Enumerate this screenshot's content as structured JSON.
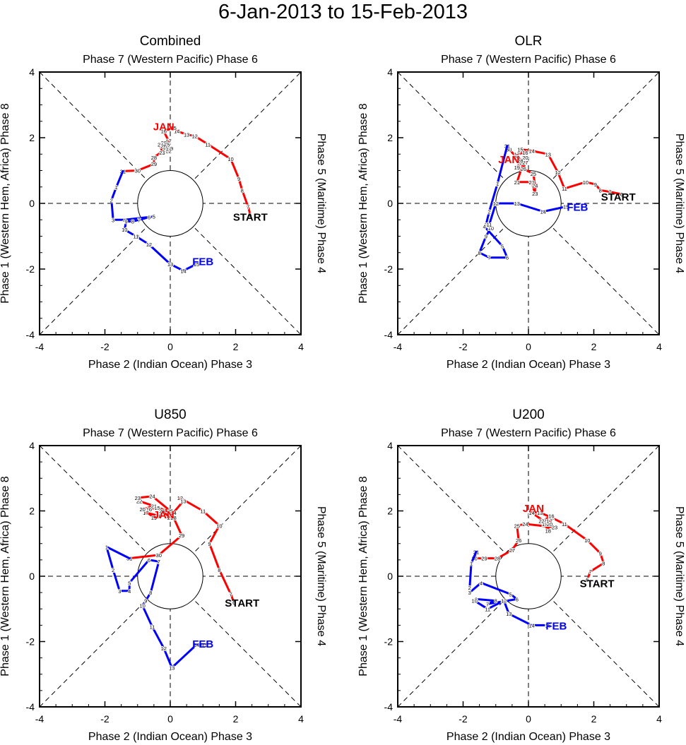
{
  "title": "6-Jan-2013 to 15-Feb-2013",
  "colors": {
    "jan": "#ff0000",
    "feb": "#0000ff",
    "start": "#000000"
  },
  "axes": {
    "top": "Phase 7 (Western Pacific) Phase 6",
    "bottom": "Phase 2 (Indian Ocean) Phase 3",
    "left": "Phase 1 (Western Hem, Africa) Phase 8",
    "right": "Phase 5 (Maritime) Phase 4",
    "ticks": [
      "-4",
      "-2",
      "0",
      "2",
      "4"
    ]
  },
  "labels": {
    "jan": "JAN",
    "feb": "FEB",
    "start": "START"
  },
  "chart_data": [
    {
      "type": "line",
      "title": "Combined",
      "xlim": [
        -4,
        4
      ],
      "ylim": [
        -4,
        4
      ],
      "jan": [
        [
          2.45,
          -0.35,
          "6"
        ],
        [
          2.38,
          -0.1,
          "7"
        ],
        [
          2.2,
          0.4,
          "8"
        ],
        [
          2.1,
          0.75,
          "9"
        ],
        [
          1.85,
          1.35,
          "10"
        ],
        [
          1.15,
          1.8,
          "11"
        ],
        [
          0.75,
          2.05,
          "12"
        ],
        [
          0.5,
          2.1,
          "13"
        ],
        [
          0.2,
          2.2,
          "14"
        ],
        [
          0.1,
          2.3,
          "15"
        ],
        [
          -0.2,
          2.2,
          "16"
        ],
        [
          -0.05,
          1.9,
          "17"
        ],
        [
          -0.15,
          1.75,
          "18"
        ],
        [
          0.0,
          1.68,
          "19"
        ],
        [
          -0.2,
          1.85,
          "20"
        ],
        [
          -0.1,
          1.75,
          "21"
        ],
        [
          -0.05,
          1.6,
          "22"
        ],
        [
          -0.25,
          1.55,
          "23"
        ],
        [
          -0.3,
          1.8,
          "24"
        ],
        [
          -0.1,
          1.8,
          "25"
        ],
        [
          -0.2,
          1.75,
          "26"
        ],
        [
          -0.15,
          1.65,
          "27"
        ],
        [
          -0.5,
          1.4,
          "28"
        ],
        [
          -0.5,
          1.2,
          "29"
        ],
        [
          -1.0,
          1.0,
          "30"
        ],
        [
          -1.45,
          0.98,
          "31"
        ]
      ],
      "feb": [
        [
          -1.45,
          0.98,
          ""
        ],
        [
          -1.65,
          0.5,
          "1"
        ],
        [
          -1.8,
          0.1,
          "2"
        ],
        [
          -1.75,
          -0.5,
          "3"
        ],
        [
          -1.4,
          -0.5,
          "4"
        ],
        [
          -0.5,
          -0.4,
          "5"
        ],
        [
          -0.65,
          -0.42,
          "6"
        ],
        [
          -0.95,
          -0.5,
          "7"
        ],
        [
          -1.15,
          -0.55,
          "8"
        ],
        [
          -1.35,
          -0.55,
          "9"
        ],
        [
          -1.4,
          -0.8,
          "10"
        ],
        [
          -1.05,
          -1.0,
          "11"
        ],
        [
          -0.65,
          -1.25,
          "12"
        ],
        [
          0.0,
          -1.85,
          "13"
        ],
        [
          0.4,
          -2.05,
          "14"
        ],
        [
          0.8,
          -1.85,
          "15"
        ]
      ],
      "jan_label": [
        -0.2,
        2.35
      ],
      "feb_label": [
        1.0,
        -1.75
      ],
      "start_label": [
        2.45,
        -0.4
      ]
    },
    {
      "type": "line",
      "title": "OLR",
      "xlim": [
        -4,
        4
      ],
      "ylim": [
        -4,
        4
      ],
      "jan": [
        [
          2.85,
          0.28,
          "6"
        ],
        [
          2.5,
          0.35,
          "7"
        ],
        [
          2.2,
          0.4,
          "8"
        ],
        [
          2.05,
          0.58,
          "9"
        ],
        [
          1.75,
          0.65,
          "10"
        ],
        [
          1.1,
          0.45,
          "11"
        ],
        [
          0.9,
          0.95,
          "12"
        ],
        [
          0.6,
          1.5,
          "13"
        ],
        [
          0.1,
          1.6,
          "14"
        ],
        [
          -0.25,
          1.65,
          "15"
        ],
        [
          -0.1,
          1.55,
          "16"
        ],
        [
          -0.35,
          1.5,
          "17"
        ],
        [
          -0.2,
          1.25,
          "18"
        ],
        [
          -0.35,
          1.1,
          "19"
        ],
        [
          -0.1,
          1.4,
          "20"
        ],
        [
          -0.35,
          0.65,
          "21"
        ],
        [
          0.1,
          0.65,
          "22"
        ],
        [
          0.2,
          0.3,
          "23"
        ],
        [
          0.2,
          0.55,
          "24"
        ],
        [
          0.15,
          0.9,
          "25"
        ],
        [
          -0.15,
          1.05,
          "26"
        ],
        [
          -0.1,
          1.25,
          "27"
        ],
        [
          -0.25,
          1.3,
          "28"
        ],
        [
          -0.35,
          1.4,
          "29"
        ],
        [
          -0.6,
          1.65,
          "30"
        ],
        [
          -0.65,
          1.75,
          "31"
        ]
      ],
      "feb": [
        [
          -0.65,
          1.75,
          ""
        ],
        [
          -0.95,
          0.6,
          "1"
        ],
        [
          -1.2,
          -0.25,
          "2"
        ],
        [
          -1.3,
          -0.65,
          "3"
        ],
        [
          -1.35,
          -0.7,
          "4"
        ],
        [
          -0.8,
          -1.3,
          "5"
        ],
        [
          -0.65,
          -1.65,
          "6"
        ],
        [
          -1.2,
          -1.65,
          "7"
        ],
        [
          -1.5,
          -1.5,
          "8"
        ],
        [
          -1.3,
          -1.0,
          "9"
        ],
        [
          -1.15,
          -0.75,
          "10"
        ],
        [
          -1.2,
          -0.65,
          "11"
        ],
        [
          -1.0,
          0.0,
          "12"
        ],
        [
          -0.35,
          0.0,
          "13"
        ],
        [
          0.45,
          -0.25,
          "14"
        ],
        [
          1.15,
          -0.1,
          "15"
        ]
      ],
      "jan_label": [
        -0.6,
        1.35
      ],
      "feb_label": [
        1.5,
        -0.1
      ],
      "start_label": [
        2.75,
        0.22
      ]
    },
    {
      "type": "line",
      "title": "U850",
      "xlim": [
        -4,
        4
      ],
      "ylim": [
        -4,
        4
      ],
      "jan": [
        [
          1.95,
          -0.8,
          "6"
        ],
        [
          1.85,
          -0.55,
          "7"
        ],
        [
          1.5,
          0.2,
          "8"
        ],
        [
          1.2,
          1.0,
          "9"
        ],
        [
          1.5,
          1.55,
          "10"
        ],
        [
          1.0,
          2.0,
          "11"
        ],
        [
          0.3,
          2.4,
          "12"
        ],
        [
          0.4,
          2.3,
          "13"
        ],
        [
          0.1,
          1.95,
          "14"
        ],
        [
          -0.4,
          2.1,
          "15"
        ],
        [
          -0.65,
          2.05,
          "16"
        ],
        [
          -0.75,
          1.95,
          "17"
        ],
        [
          -0.35,
          1.85,
          "18"
        ],
        [
          -0.5,
          1.8,
          "19"
        ],
        [
          -0.85,
          2.05,
          "20"
        ],
        [
          -0.5,
          2.15,
          "21"
        ],
        [
          -0.95,
          2.3,
          "22"
        ],
        [
          -1.0,
          2.4,
          "23"
        ],
        [
          -0.55,
          2.45,
          "24"
        ],
        [
          0.0,
          2.0,
          "25"
        ],
        [
          -0.25,
          2.0,
          "26"
        ],
        [
          0.0,
          1.8,
          "27"
        ],
        [
          0.1,
          1.8,
          "28"
        ],
        [
          0.35,
          1.25,
          "29"
        ],
        [
          -0.35,
          0.65,
          "30"
        ],
        [
          -1.25,
          0.55,
          "31"
        ]
      ],
      "feb": [
        [
          -1.25,
          0.55,
          ""
        ],
        [
          -1.95,
          0.9,
          "1"
        ],
        [
          -1.75,
          0.2,
          "2"
        ],
        [
          -1.55,
          -0.45,
          "3"
        ],
        [
          -1.25,
          -0.45,
          "4"
        ],
        [
          -1.25,
          -0.2,
          "5"
        ],
        [
          -0.65,
          0.5,
          "6"
        ],
        [
          -0.35,
          0.45,
          "7"
        ],
        [
          -0.6,
          -0.5,
          "8"
        ],
        [
          -0.75,
          -0.75,
          "9"
        ],
        [
          -0.85,
          -0.9,
          "10"
        ],
        [
          -0.55,
          -1.55,
          "11"
        ],
        [
          -0.2,
          -2.2,
          "12"
        ],
        [
          0.05,
          -2.8,
          "13"
        ],
        [
          0.8,
          -2.1,
          "14"
        ],
        [
          1.05,
          -2.1,
          "15"
        ]
      ],
      "jan_label": [
        -0.2,
        1.9
      ],
      "feb_label": [
        1.0,
        -2.05
      ],
      "start_label": [
        2.2,
        -0.8
      ]
    },
    {
      "type": "line",
      "title": "U200",
      "xlim": [
        -4,
        4
      ],
      "ylim": [
        -4,
        4
      ],
      "jan": [
        [
          1.8,
          -0.1,
          "6"
        ],
        [
          1.9,
          0.15,
          "7"
        ],
        [
          2.3,
          0.4,
          "8"
        ],
        [
          2.2,
          0.7,
          "9"
        ],
        [
          1.8,
          1.1,
          "10"
        ],
        [
          1.1,
          1.6,
          "11"
        ],
        [
          0.7,
          1.8,
          "12"
        ],
        [
          0.35,
          1.95,
          "13"
        ],
        [
          0.1,
          1.95,
          "14"
        ],
        [
          0.45,
          1.7,
          "15"
        ],
        [
          0.7,
          1.85,
          "16"
        ],
        [
          0.65,
          1.7,
          "17"
        ],
        [
          0.6,
          1.4,
          "18"
        ],
        [
          0.5,
          1.6,
          "19"
        ],
        [
          0.65,
          1.6,
          "20"
        ],
        [
          0.55,
          1.7,
          "21"
        ],
        [
          0.4,
          1.7,
          "22"
        ],
        [
          0.8,
          1.5,
          "23"
        ],
        [
          -0.1,
          1.6,
          "24"
        ],
        [
          -0.35,
          1.55,
          "25"
        ],
        [
          -0.3,
          1.1,
          "26"
        ],
        [
          -0.5,
          0.8,
          "27"
        ],
        [
          -0.95,
          0.55,
          "28"
        ],
        [
          -1.35,
          0.55,
          "29"
        ],
        [
          -1.65,
          0.55,
          "30"
        ],
        [
          -1.6,
          0.75,
          "31"
        ]
      ],
      "feb": [
        [
          -1.6,
          0.75,
          ""
        ],
        [
          -1.75,
          0.4,
          "1"
        ],
        [
          -1.8,
          -0.35,
          "2"
        ],
        [
          -1.8,
          -0.5,
          "3"
        ],
        [
          -1.45,
          -0.2,
          "4"
        ],
        [
          -0.55,
          -0.55,
          "5"
        ],
        [
          -0.35,
          -0.7,
          "6"
        ],
        [
          -1.25,
          -0.85,
          "7"
        ],
        [
          -1.0,
          -0.75,
          "8"
        ],
        [
          -1.6,
          -0.7,
          "9"
        ],
        [
          -1.65,
          -0.75,
          "10"
        ],
        [
          -1.25,
          -1.0,
          "11"
        ],
        [
          -0.75,
          -0.75,
          "12"
        ],
        [
          -0.6,
          -1.15,
          "13"
        ],
        [
          0.1,
          -1.5,
          "14"
        ],
        [
          0.6,
          -1.5,
          "15"
        ]
      ],
      "jan_label": [
        0.15,
        2.1
      ],
      "feb_label": [
        0.85,
        -1.5
      ],
      "start_label": [
        2.1,
        -0.2
      ]
    }
  ]
}
